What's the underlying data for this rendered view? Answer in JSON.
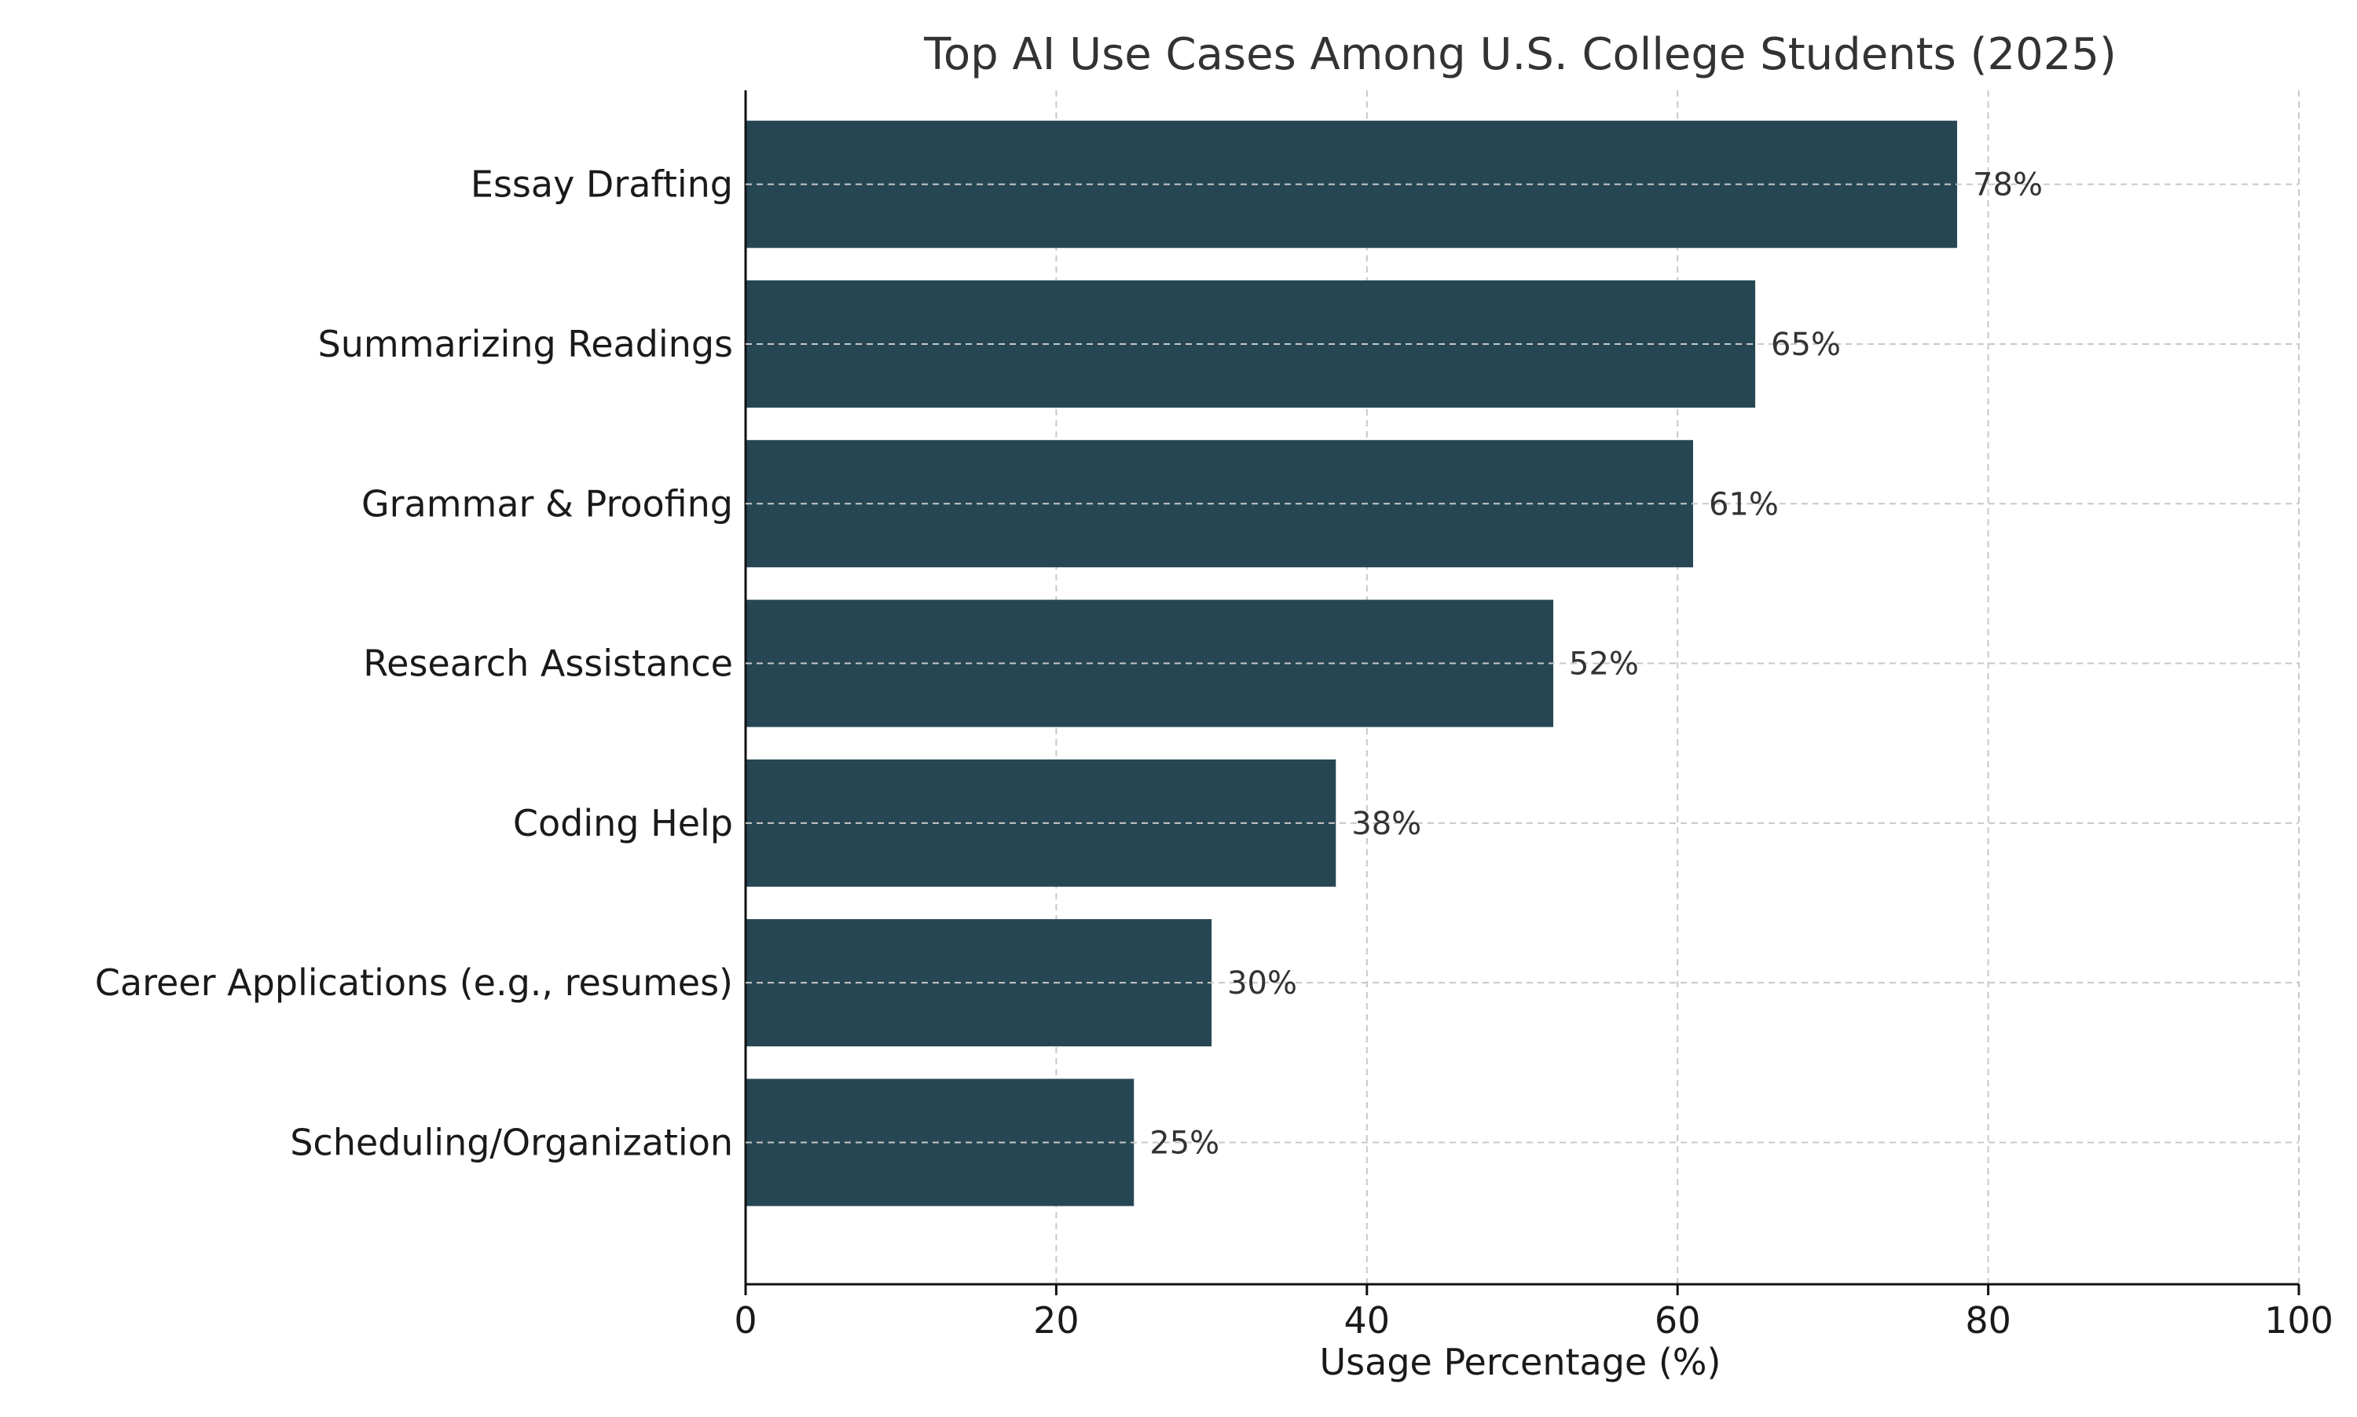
{
  "chart_data": {
    "type": "bar",
    "orientation": "horizontal",
    "title": "Top AI Use Cases Among U.S. College Students (2025)",
    "xlabel": "Usage Percentage (%)",
    "ylabel": "",
    "xlim": [
      0,
      100
    ],
    "xticks": [
      0,
      20,
      40,
      60,
      80,
      100
    ],
    "grid": true,
    "categories": [
      "Essay Drafting",
      "Summarizing Readings",
      "Grammar & Proofing",
      "Research Assistance",
      "Coding Help",
      "Career Applications (e.g., resumes)",
      "Scheduling/Organization"
    ],
    "values": [
      78,
      65,
      61,
      52,
      38,
      30,
      25
    ],
    "value_labels": [
      "78%",
      "65%",
      "61%",
      "52%",
      "38%",
      "30%",
      "25%"
    ],
    "colors": {
      "bar": "#264653"
    }
  }
}
